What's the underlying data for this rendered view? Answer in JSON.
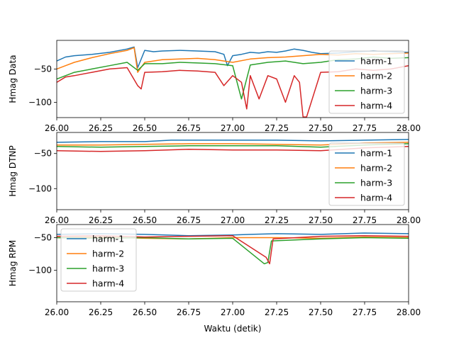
{
  "figure": {
    "xlabel": "Waktu (detik)"
  },
  "chart_data": [
    {
      "type": "line",
      "ylabel": "Hmag Data",
      "xlim": [
        26.0,
        28.0
      ],
      "ylim": [
        -123,
        -7
      ],
      "xticks": [
        "26.00",
        "26.25",
        "26.50",
        "26.75",
        "27.00",
        "27.25",
        "27.50",
        "27.75",
        "28.00"
      ],
      "yticks": [
        -50,
        -100
      ],
      "legend": "lower-right",
      "series": [
        {
          "name": "harm-1",
          "color": "#1f77b4",
          "x": [
            26.0,
            26.05,
            26.1,
            26.2,
            26.3,
            26.4,
            26.44,
            26.46,
            26.5,
            26.55,
            26.6,
            26.7,
            26.8,
            26.9,
            26.95,
            26.97,
            27.0,
            27.05,
            27.1,
            27.15,
            27.2,
            27.25,
            27.3,
            27.35,
            27.4,
            27.45,
            27.5,
            27.6,
            27.7,
            27.8,
            27.9,
            28.0
          ],
          "y": [
            -38,
            -32,
            -30,
            -28,
            -25,
            -20,
            -17,
            -48,
            -22,
            -24,
            -23,
            -22,
            -23,
            -24,
            -28,
            -45,
            -30,
            -28,
            -25,
            -26,
            -24,
            -25,
            -23,
            -20,
            -22,
            -25,
            -27,
            -26,
            -24,
            -23,
            -24,
            -25
          ]
        },
        {
          "name": "harm-2",
          "color": "#ff7f0e",
          "x": [
            26.0,
            26.05,
            26.1,
            26.2,
            26.3,
            26.4,
            26.44,
            26.46,
            26.5,
            26.6,
            26.7,
            26.8,
            26.9,
            27.0,
            27.1,
            27.2,
            27.3,
            27.4,
            27.5,
            27.6,
            27.7,
            27.8,
            27.9,
            28.0
          ],
          "y": [
            -50,
            -45,
            -40,
            -33,
            -27,
            -22,
            -18,
            -55,
            -40,
            -36,
            -35,
            -34,
            -36,
            -40,
            -35,
            -33,
            -32,
            -30,
            -28,
            -29,
            -27,
            -28,
            -27,
            -26
          ]
        },
        {
          "name": "harm-3",
          "color": "#2ca02c",
          "x": [
            26.0,
            26.05,
            26.1,
            26.2,
            26.3,
            26.4,
            26.46,
            26.5,
            26.6,
            26.7,
            26.8,
            26.9,
            27.0,
            27.05,
            27.1,
            27.2,
            27.3,
            27.4,
            27.5,
            27.6,
            27.7,
            27.8,
            27.9,
            28.0
          ],
          "y": [
            -65,
            -60,
            -55,
            -50,
            -45,
            -40,
            -52,
            -42,
            -42,
            -40,
            -41,
            -42,
            -45,
            -95,
            -44,
            -40,
            -38,
            -42,
            -40,
            -36,
            -35,
            -32,
            -34,
            -33
          ]
        },
        {
          "name": "harm-4",
          "color": "#d62728",
          "x": [
            26.0,
            26.05,
            26.1,
            26.2,
            26.3,
            26.4,
            26.46,
            26.48,
            26.5,
            26.6,
            26.7,
            26.8,
            26.9,
            26.95,
            27.0,
            27.05,
            27.08,
            27.1,
            27.15,
            27.2,
            27.25,
            27.3,
            27.35,
            27.38,
            27.4,
            27.42,
            27.5,
            27.6,
            27.7,
            27.8,
            27.9,
            28.0
          ],
          "y": [
            -70,
            -62,
            -60,
            -55,
            -50,
            -48,
            -75,
            -80,
            -55,
            -54,
            -52,
            -53,
            -55,
            -75,
            -60,
            -70,
            -110,
            -60,
            -95,
            -60,
            -65,
            -100,
            -60,
            -70,
            -122,
            -122,
            -55,
            -54,
            -50,
            -52,
            -50,
            -45
          ]
        }
      ]
    },
    {
      "type": "line",
      "ylabel": "Hmag DTNP",
      "xlim": [
        26.0,
        28.0
      ],
      "ylim": [
        -130,
        -20
      ],
      "xticks": [
        "26.00",
        "26.25",
        "26.50",
        "26.75",
        "27.00",
        "27.25",
        "27.50",
        "27.75",
        "28.00"
      ],
      "yticks": [
        -50,
        -100
      ],
      "legend": "lower-right",
      "series": [
        {
          "name": "harm-1",
          "color": "#1f77b4",
          "x": [
            26.0,
            26.25,
            26.5,
            26.65,
            26.75,
            27.0,
            27.25,
            27.5,
            27.75,
            28.0
          ],
          "y": [
            -34,
            -33,
            -33,
            -31,
            -31,
            -31,
            -31,
            -32,
            -31,
            -30
          ]
        },
        {
          "name": "harm-2",
          "color": "#ff7f0e",
          "x": [
            26.0,
            26.25,
            26.5,
            26.75,
            27.0,
            27.25,
            27.5,
            27.75,
            28.0
          ],
          "y": [
            -38,
            -38,
            -37,
            -36,
            -36,
            -37,
            -38,
            -35,
            -34
          ]
        },
        {
          "name": "harm-3",
          "color": "#2ca02c",
          "x": [
            26.0,
            26.25,
            26.5,
            26.75,
            27.0,
            27.25,
            27.5,
            27.75,
            28.0
          ],
          "y": [
            -40,
            -41,
            -40,
            -39,
            -39,
            -39,
            -41,
            -38,
            -36
          ]
        },
        {
          "name": "harm-4",
          "color": "#d62728",
          "x": [
            26.0,
            26.25,
            26.5,
            26.75,
            27.0,
            27.25,
            27.5,
            27.75,
            28.0
          ],
          "y": [
            -46,
            -47,
            -46,
            -44,
            -45,
            -45,
            -46,
            -42,
            -40
          ]
        }
      ]
    },
    {
      "type": "line",
      "ylabel": "Hmag RPM",
      "xlim": [
        26.0,
        28.0
      ],
      "ylim": [
        -148,
        -30
      ],
      "xticks": [
        "26.00",
        "26.25",
        "26.50",
        "26.75",
        "27.00",
        "27.25",
        "27.50",
        "27.75",
        "28.00"
      ],
      "yticks": [
        -50,
        -100
      ],
      "legend": "upper-left",
      "series": [
        {
          "name": "harm-1",
          "color": "#1f77b4",
          "x": [
            26.0,
            26.25,
            26.5,
            26.75,
            27.0,
            27.1,
            27.25,
            27.5,
            27.75,
            28.0
          ],
          "y": [
            -45,
            -44,
            -45,
            -47,
            -46,
            -45,
            -44,
            -45,
            -43,
            -44
          ]
        },
        {
          "name": "harm-2",
          "color": "#ff7f0e",
          "x": [
            26.0,
            26.25,
            26.5,
            26.75,
            27.0,
            27.25,
            27.5,
            27.75,
            28.0
          ],
          "y": [
            -50,
            -49,
            -51,
            -52,
            -50,
            -50,
            -51,
            -49,
            -50
          ]
        },
        {
          "name": "harm-3",
          "color": "#2ca02c",
          "x": [
            26.0,
            26.25,
            26.5,
            26.75,
            27.0,
            27.18,
            27.2,
            27.22,
            27.5,
            27.75,
            28.0
          ],
          "y": [
            -50,
            -51,
            -50,
            -52,
            -51,
            -90,
            -88,
            -55,
            -52,
            -50,
            -51
          ]
        },
        {
          "name": "harm-4",
          "color": "#d62728",
          "x": [
            26.0,
            26.25,
            26.5,
            26.75,
            27.0,
            27.19,
            27.21,
            27.23,
            27.5,
            27.75,
            28.0
          ],
          "y": [
            -48,
            -47,
            -49,
            -48,
            -47,
            -80,
            -90,
            -52,
            -48,
            -47,
            -48
          ]
        }
      ]
    }
  ]
}
